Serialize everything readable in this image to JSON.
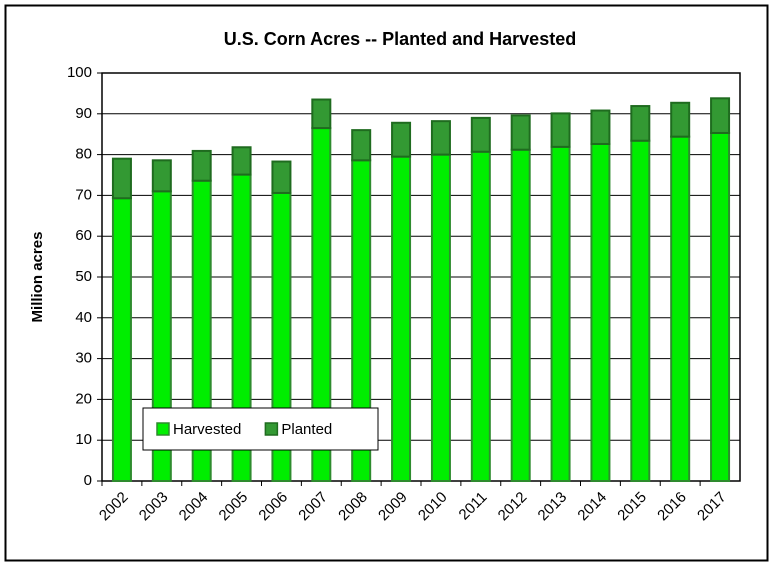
{
  "chart_data": {
    "type": "stacked_bar",
    "title": "U.S. Corn Acres -- Planted and Harvested",
    "y_label": "Million acres",
    "categories": [
      "2002",
      "2003",
      "2004",
      "2005",
      "2006",
      "2007",
      "2008",
      "2009",
      "2010",
      "2011",
      "2012",
      "2013",
      "2014",
      "2015",
      "2016",
      "2017"
    ],
    "series": [
      {
        "name": "Harvested",
        "color": "#00ee00",
        "edge": "#2e8b2e",
        "values": [
          69.3,
          71.0,
          73.6,
          75.1,
          70.6,
          86.5,
          78.6,
          79.5,
          80.0,
          80.7,
          81.2,
          81.9,
          82.6,
          83.4,
          84.4,
          85.3
        ]
      },
      {
        "name": "Planted",
        "color": "#339933",
        "edge": "#1f6b1f",
        "values": [
          9.7,
          7.6,
          7.3,
          6.7,
          7.7,
          7.0,
          7.4,
          8.3,
          8.2,
          8.3,
          8.4,
          8.2,
          8.2,
          8.5,
          8.3,
          8.5
        ]
      }
    ],
    "ylim": [
      0,
      100
    ],
    "yticks": [
      0,
      10,
      20,
      30,
      40,
      50,
      60,
      70,
      80,
      90,
      100
    ],
    "grid": true,
    "legend": "lower left"
  }
}
